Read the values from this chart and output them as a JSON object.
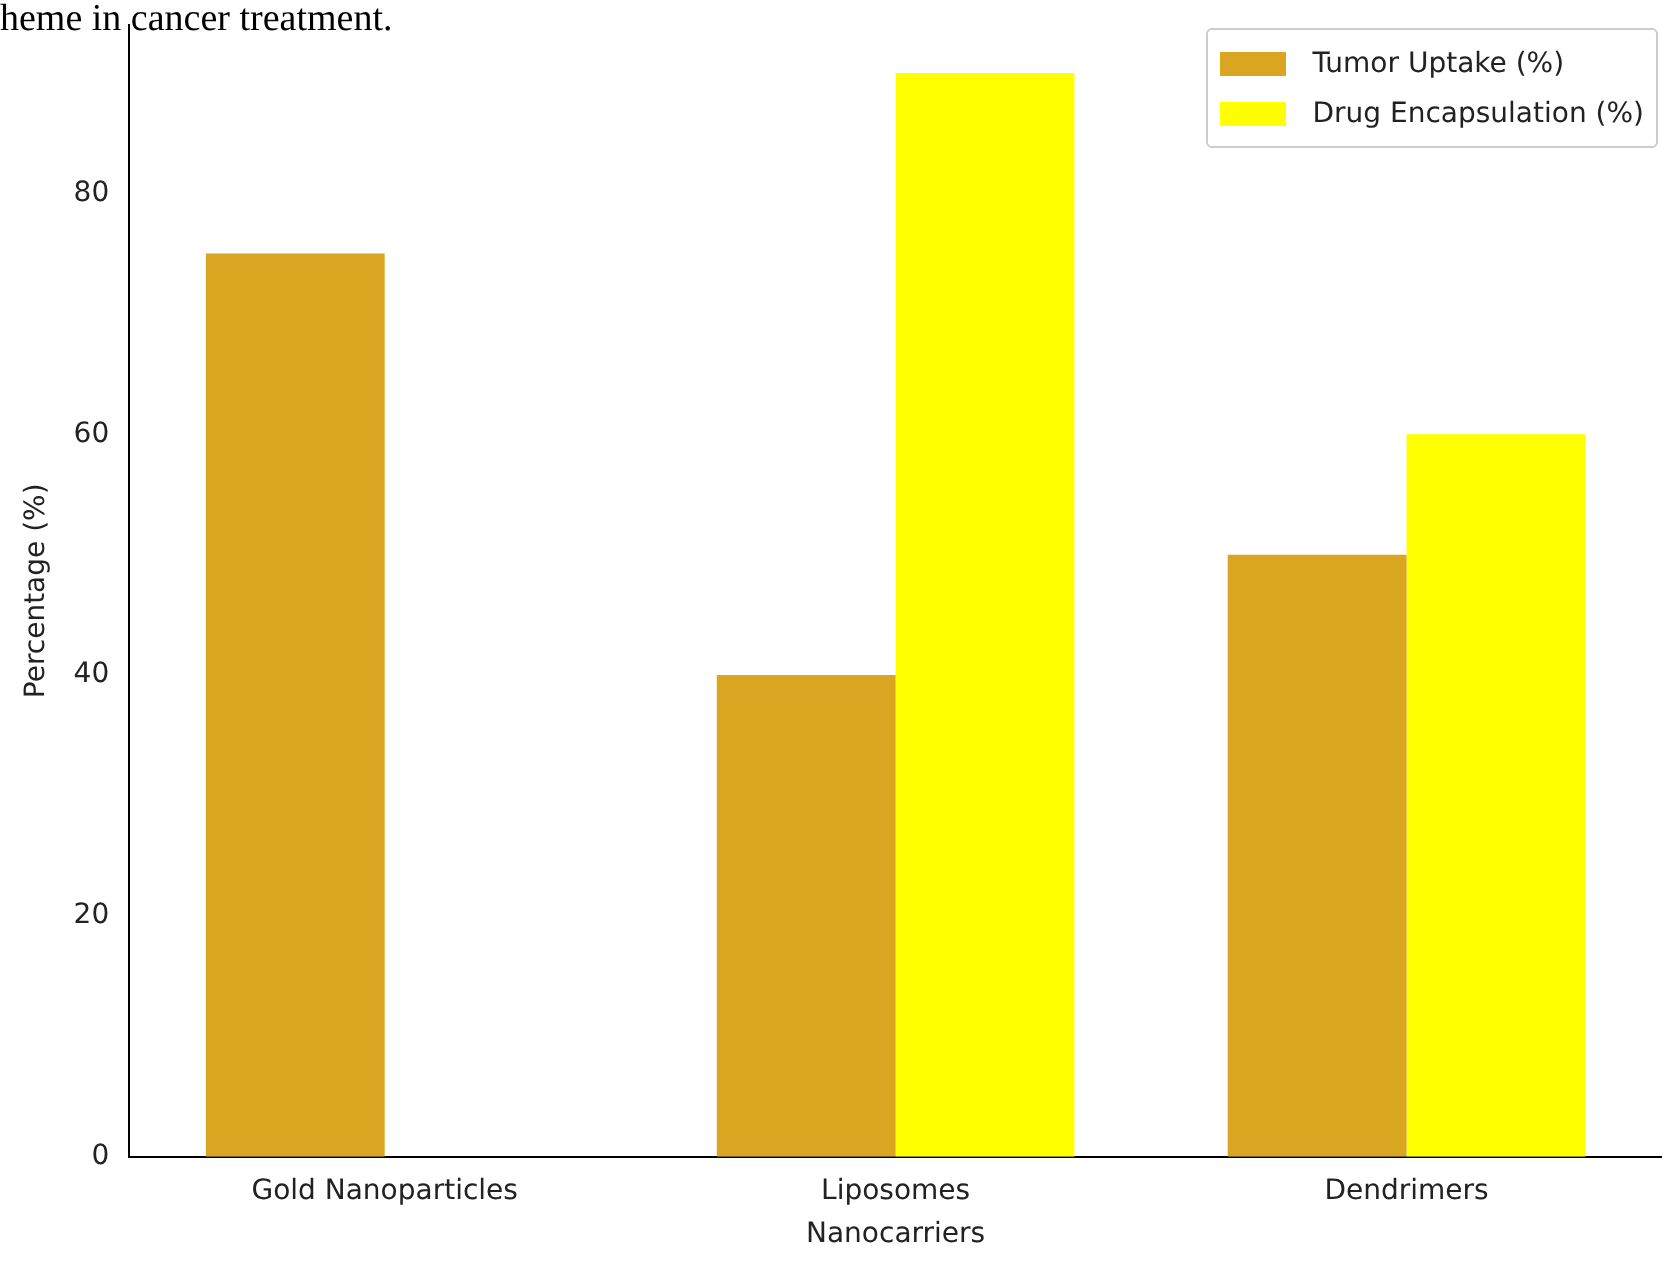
{
  "chart_data": {
    "type": "bar",
    "annotations": [
      "heme in cancer treatment."
    ],
    "xlabel": "Nanocarriers",
    "ylabel": "Percentage (%)",
    "categories": [
      "Gold Nanoparticles",
      "Liposomes",
      "Dendrimers"
    ],
    "series": [
      {
        "name": "Tumor Uptake (%)",
        "color": "#daa520",
        "values": [
          75,
          40,
          50
        ]
      },
      {
        "name": "Drug Encapsulation (%)",
        "color": "#ffff00",
        "values": [
          null,
          90,
          60
        ]
      }
    ],
    "ylim": [
      0,
      94
    ],
    "yticks": [
      0,
      20,
      40,
      60,
      80
    ],
    "grid": false,
    "legend": "top right"
  }
}
